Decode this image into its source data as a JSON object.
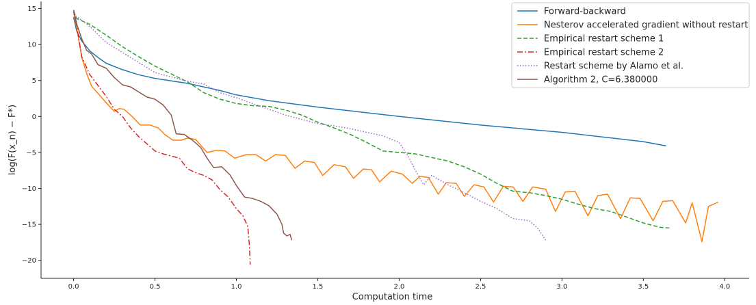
{
  "chart_data": {
    "type": "line",
    "title": "",
    "xlabel": "Computation time",
    "ylabel": "log(F(x_n) − F*)",
    "xlim": [
      -0.2,
      4.15
    ],
    "ylim": [
      -22.5,
      16
    ],
    "x_ticks": [
      0.0,
      0.5,
      1.0,
      1.5,
      2.0,
      2.5,
      3.0,
      3.5,
      4.0
    ],
    "x_tick_labels": [
      "0.0",
      "0.5",
      "1.0",
      "1.5",
      "2.0",
      "2.5",
      "3.0",
      "3.5",
      "4.0"
    ],
    "y_ticks": [
      15,
      10,
      5,
      0,
      -5,
      -10,
      -15,
      -20
    ],
    "y_tick_labels": [
      "15",
      "10",
      "5",
      "0",
      "−5",
      "−10",
      "−15",
      "−20"
    ],
    "grid": false,
    "legend_position": "top-right",
    "series": [
      {
        "name": "Forward-backward",
        "color": "#1f77b4",
        "dash": "solid",
        "points": [
          [
            0.0,
            13.8
          ],
          [
            0.02,
            11.8
          ],
          [
            0.05,
            10.5
          ],
          [
            0.1,
            9.1
          ],
          [
            0.15,
            8.2
          ],
          [
            0.2,
            7.4
          ],
          [
            0.3,
            6.5
          ],
          [
            0.4,
            5.8
          ],
          [
            0.5,
            5.3
          ],
          [
            0.7,
            4.6
          ],
          [
            0.9,
            3.6
          ],
          [
            1.0,
            3.0
          ],
          [
            1.2,
            2.2
          ],
          [
            1.5,
            1.3
          ],
          [
            2.0,
            0.0
          ],
          [
            2.5,
            -1.2
          ],
          [
            3.0,
            -2.2
          ],
          [
            3.5,
            -3.5
          ],
          [
            3.64,
            -4.1
          ]
        ]
      },
      {
        "name": "Nesterov accelerated gradient without restart",
        "color": "#ff7f0e",
        "dash": "solid",
        "points": [
          [
            0.0,
            14.5
          ],
          [
            0.02,
            12.2
          ],
          [
            0.05,
            8.2
          ],
          [
            0.08,
            6.0
          ],
          [
            0.11,
            4.2
          ],
          [
            0.15,
            3.2
          ],
          [
            0.2,
            1.9
          ],
          [
            0.25,
            0.7
          ],
          [
            0.28,
            1.1
          ],
          [
            0.31,
            1.0
          ],
          [
            0.36,
            0.0
          ],
          [
            0.41,
            -1.2
          ],
          [
            0.47,
            -1.2
          ],
          [
            0.52,
            -1.6
          ],
          [
            0.56,
            -2.5
          ],
          [
            0.61,
            -3.3
          ],
          [
            0.66,
            -3.3
          ],
          [
            0.7,
            -3.0
          ],
          [
            0.75,
            -3.2
          ],
          [
            0.82,
            -5.0
          ],
          [
            0.88,
            -4.7
          ],
          [
            0.93,
            -4.8
          ],
          [
            0.99,
            -5.8
          ],
          [
            1.06,
            -5.3
          ],
          [
            1.12,
            -5.3
          ],
          [
            1.18,
            -6.2
          ],
          [
            1.24,
            -5.3
          ],
          [
            1.3,
            -5.4
          ],
          [
            1.36,
            -7.2
          ],
          [
            1.42,
            -6.2
          ],
          [
            1.48,
            -6.4
          ],
          [
            1.53,
            -8.2
          ],
          [
            1.6,
            -6.7
          ],
          [
            1.67,
            -7.0
          ],
          [
            1.72,
            -8.6
          ],
          [
            1.78,
            -7.3
          ],
          [
            1.83,
            -7.4
          ],
          [
            1.88,
            -9.1
          ],
          [
            1.95,
            -7.6
          ],
          [
            2.02,
            -8.0
          ],
          [
            2.08,
            -9.3
          ],
          [
            2.13,
            -8.3
          ],
          [
            2.18,
            -8.5
          ],
          [
            2.24,
            -10.8
          ],
          [
            2.29,
            -9.2
          ],
          [
            2.35,
            -9.3
          ],
          [
            2.4,
            -11.1
          ],
          [
            2.46,
            -9.5
          ],
          [
            2.52,
            -9.8
          ],
          [
            2.58,
            -11.9
          ],
          [
            2.64,
            -9.7
          ],
          [
            2.7,
            -9.8
          ],
          [
            2.76,
            -11.8
          ],
          [
            2.82,
            -9.8
          ],
          [
            2.9,
            -10.1
          ],
          [
            2.96,
            -13.2
          ],
          [
            3.02,
            -10.5
          ],
          [
            3.08,
            -10.4
          ],
          [
            3.16,
            -13.8
          ],
          [
            3.22,
            -11.0
          ],
          [
            3.28,
            -10.8
          ],
          [
            3.36,
            -14.2
          ],
          [
            3.42,
            -11.3
          ],
          [
            3.48,
            -11.4
          ],
          [
            3.56,
            -14.5
          ],
          [
            3.62,
            -11.8
          ],
          [
            3.68,
            -11.7
          ],
          [
            3.76,
            -14.8
          ],
          [
            3.8,
            -12.0
          ],
          [
            3.86,
            -17.4
          ],
          [
            3.9,
            -12.5
          ],
          [
            3.96,
            -11.9
          ]
        ]
      },
      {
        "name": "Empirical restart scheme 1",
        "color": "#2ca02c",
        "dash": "dashed",
        "points": [
          [
            0.0,
            14.6
          ],
          [
            0.02,
            13.6
          ],
          [
            0.1,
            12.8
          ],
          [
            0.2,
            11.3
          ],
          [
            0.3,
            9.7
          ],
          [
            0.4,
            8.3
          ],
          [
            0.5,
            7.0
          ],
          [
            0.6,
            5.9
          ],
          [
            0.7,
            4.8
          ],
          [
            0.8,
            3.3
          ],
          [
            0.9,
            2.4
          ],
          [
            1.0,
            1.8
          ],
          [
            1.1,
            1.5
          ],
          [
            1.2,
            1.4
          ],
          [
            1.3,
            0.9
          ],
          [
            1.4,
            0.2
          ],
          [
            1.5,
            -0.8
          ],
          [
            1.6,
            -1.6
          ],
          [
            1.7,
            -2.5
          ],
          [
            1.8,
            -3.6
          ],
          [
            1.9,
            -4.8
          ],
          [
            2.0,
            -5.0
          ],
          [
            2.1,
            -5.2
          ],
          [
            2.2,
            -5.7
          ],
          [
            2.3,
            -6.2
          ],
          [
            2.4,
            -7.0
          ],
          [
            2.5,
            -8.0
          ],
          [
            2.6,
            -9.3
          ],
          [
            2.7,
            -10.4
          ],
          [
            2.8,
            -10.6
          ],
          [
            2.9,
            -11.0
          ],
          [
            3.0,
            -11.5
          ],
          [
            3.1,
            -12.2
          ],
          [
            3.2,
            -12.8
          ],
          [
            3.3,
            -13.2
          ],
          [
            3.4,
            -14.0
          ],
          [
            3.5,
            -14.8
          ],
          [
            3.6,
            -15.4
          ],
          [
            3.66,
            -15.5
          ]
        ]
      },
      {
        "name": "Empirical restart scheme 2",
        "color": "#d62728",
        "dash": "dashdot",
        "points": [
          [
            0.0,
            14.8
          ],
          [
            0.02,
            12.5
          ],
          [
            0.05,
            8.3
          ],
          [
            0.1,
            5.8
          ],
          [
            0.15,
            4.3
          ],
          [
            0.2,
            2.8
          ],
          [
            0.25,
            1.0
          ],
          [
            0.3,
            0.0
          ],
          [
            0.35,
            -1.6
          ],
          [
            0.4,
            -2.8
          ],
          [
            0.45,
            -3.8
          ],
          [
            0.5,
            -4.8
          ],
          [
            0.55,
            -5.2
          ],
          [
            0.6,
            -5.5
          ],
          [
            0.65,
            -5.8
          ],
          [
            0.7,
            -7.3
          ],
          [
            0.75,
            -7.8
          ],
          [
            0.8,
            -8.2
          ],
          [
            0.85,
            -8.8
          ],
          [
            0.9,
            -10.2
          ],
          [
            0.95,
            -11.2
          ],
          [
            1.0,
            -12.8
          ],
          [
            1.04,
            -13.8
          ],
          [
            1.07,
            -15.3
          ],
          [
            1.08,
            -18.0
          ],
          [
            1.085,
            -20.6
          ]
        ]
      },
      {
        "name": "Restart scheme by Alamo et al.",
        "color": "#9467bd",
        "dash": "dotted",
        "points": [
          [
            0.0,
            14.2
          ],
          [
            0.1,
            12.5
          ],
          [
            0.2,
            10.3
          ],
          [
            0.3,
            8.9
          ],
          [
            0.4,
            7.5
          ],
          [
            0.5,
            6.1
          ],
          [
            0.6,
            5.5
          ],
          [
            0.7,
            4.9
          ],
          [
            0.8,
            4.5
          ],
          [
            0.9,
            3.3
          ],
          [
            1.0,
            2.6
          ],
          [
            1.1,
            1.8
          ],
          [
            1.2,
            1.0
          ],
          [
            1.3,
            0.2
          ],
          [
            1.4,
            -0.4
          ],
          [
            1.5,
            -1.0
          ],
          [
            1.6,
            -1.3
          ],
          [
            1.7,
            -1.7
          ],
          [
            1.8,
            -2.2
          ],
          [
            1.9,
            -2.7
          ],
          [
            2.0,
            -3.6
          ],
          [
            2.05,
            -5.3
          ],
          [
            2.1,
            -7.5
          ],
          [
            2.15,
            -9.5
          ],
          [
            2.2,
            -8.2
          ],
          [
            2.3,
            -9.5
          ],
          [
            2.4,
            -10.6
          ],
          [
            2.5,
            -11.8
          ],
          [
            2.6,
            -12.8
          ],
          [
            2.7,
            -14.2
          ],
          [
            2.8,
            -14.5
          ],
          [
            2.85,
            -15.5
          ],
          [
            2.9,
            -17.2
          ]
        ]
      },
      {
        "name": "Algorithm 2, C=6.380000",
        "color": "#8c564b",
        "dash": "solid",
        "points": [
          [
            0.0,
            14.8
          ],
          [
            0.02,
            12.8
          ],
          [
            0.05,
            10.8
          ],
          [
            0.08,
            9.2
          ],
          [
            0.11,
            8.7
          ],
          [
            0.15,
            7.2
          ],
          [
            0.2,
            6.7
          ],
          [
            0.25,
            5.4
          ],
          [
            0.3,
            4.4
          ],
          [
            0.35,
            4.1
          ],
          [
            0.4,
            3.4
          ],
          [
            0.45,
            2.7
          ],
          [
            0.5,
            2.4
          ],
          [
            0.55,
            1.6
          ],
          [
            0.6,
            0.2
          ],
          [
            0.63,
            -2.4
          ],
          [
            0.68,
            -2.5
          ],
          [
            0.73,
            -3.3
          ],
          [
            0.78,
            -4.3
          ],
          [
            0.82,
            -5.8
          ],
          [
            0.86,
            -7.1
          ],
          [
            0.91,
            -7.0
          ],
          [
            0.96,
            -8.1
          ],
          [
            1.0,
            -9.6
          ],
          [
            1.05,
            -11.2
          ],
          [
            1.1,
            -11.4
          ],
          [
            1.15,
            -11.8
          ],
          [
            1.2,
            -12.4
          ],
          [
            1.25,
            -13.6
          ],
          [
            1.28,
            -15.0
          ],
          [
            1.29,
            -16.2
          ],
          [
            1.31,
            -16.6
          ],
          [
            1.33,
            -16.4
          ],
          [
            1.34,
            -17.2
          ]
        ]
      }
    ]
  }
}
